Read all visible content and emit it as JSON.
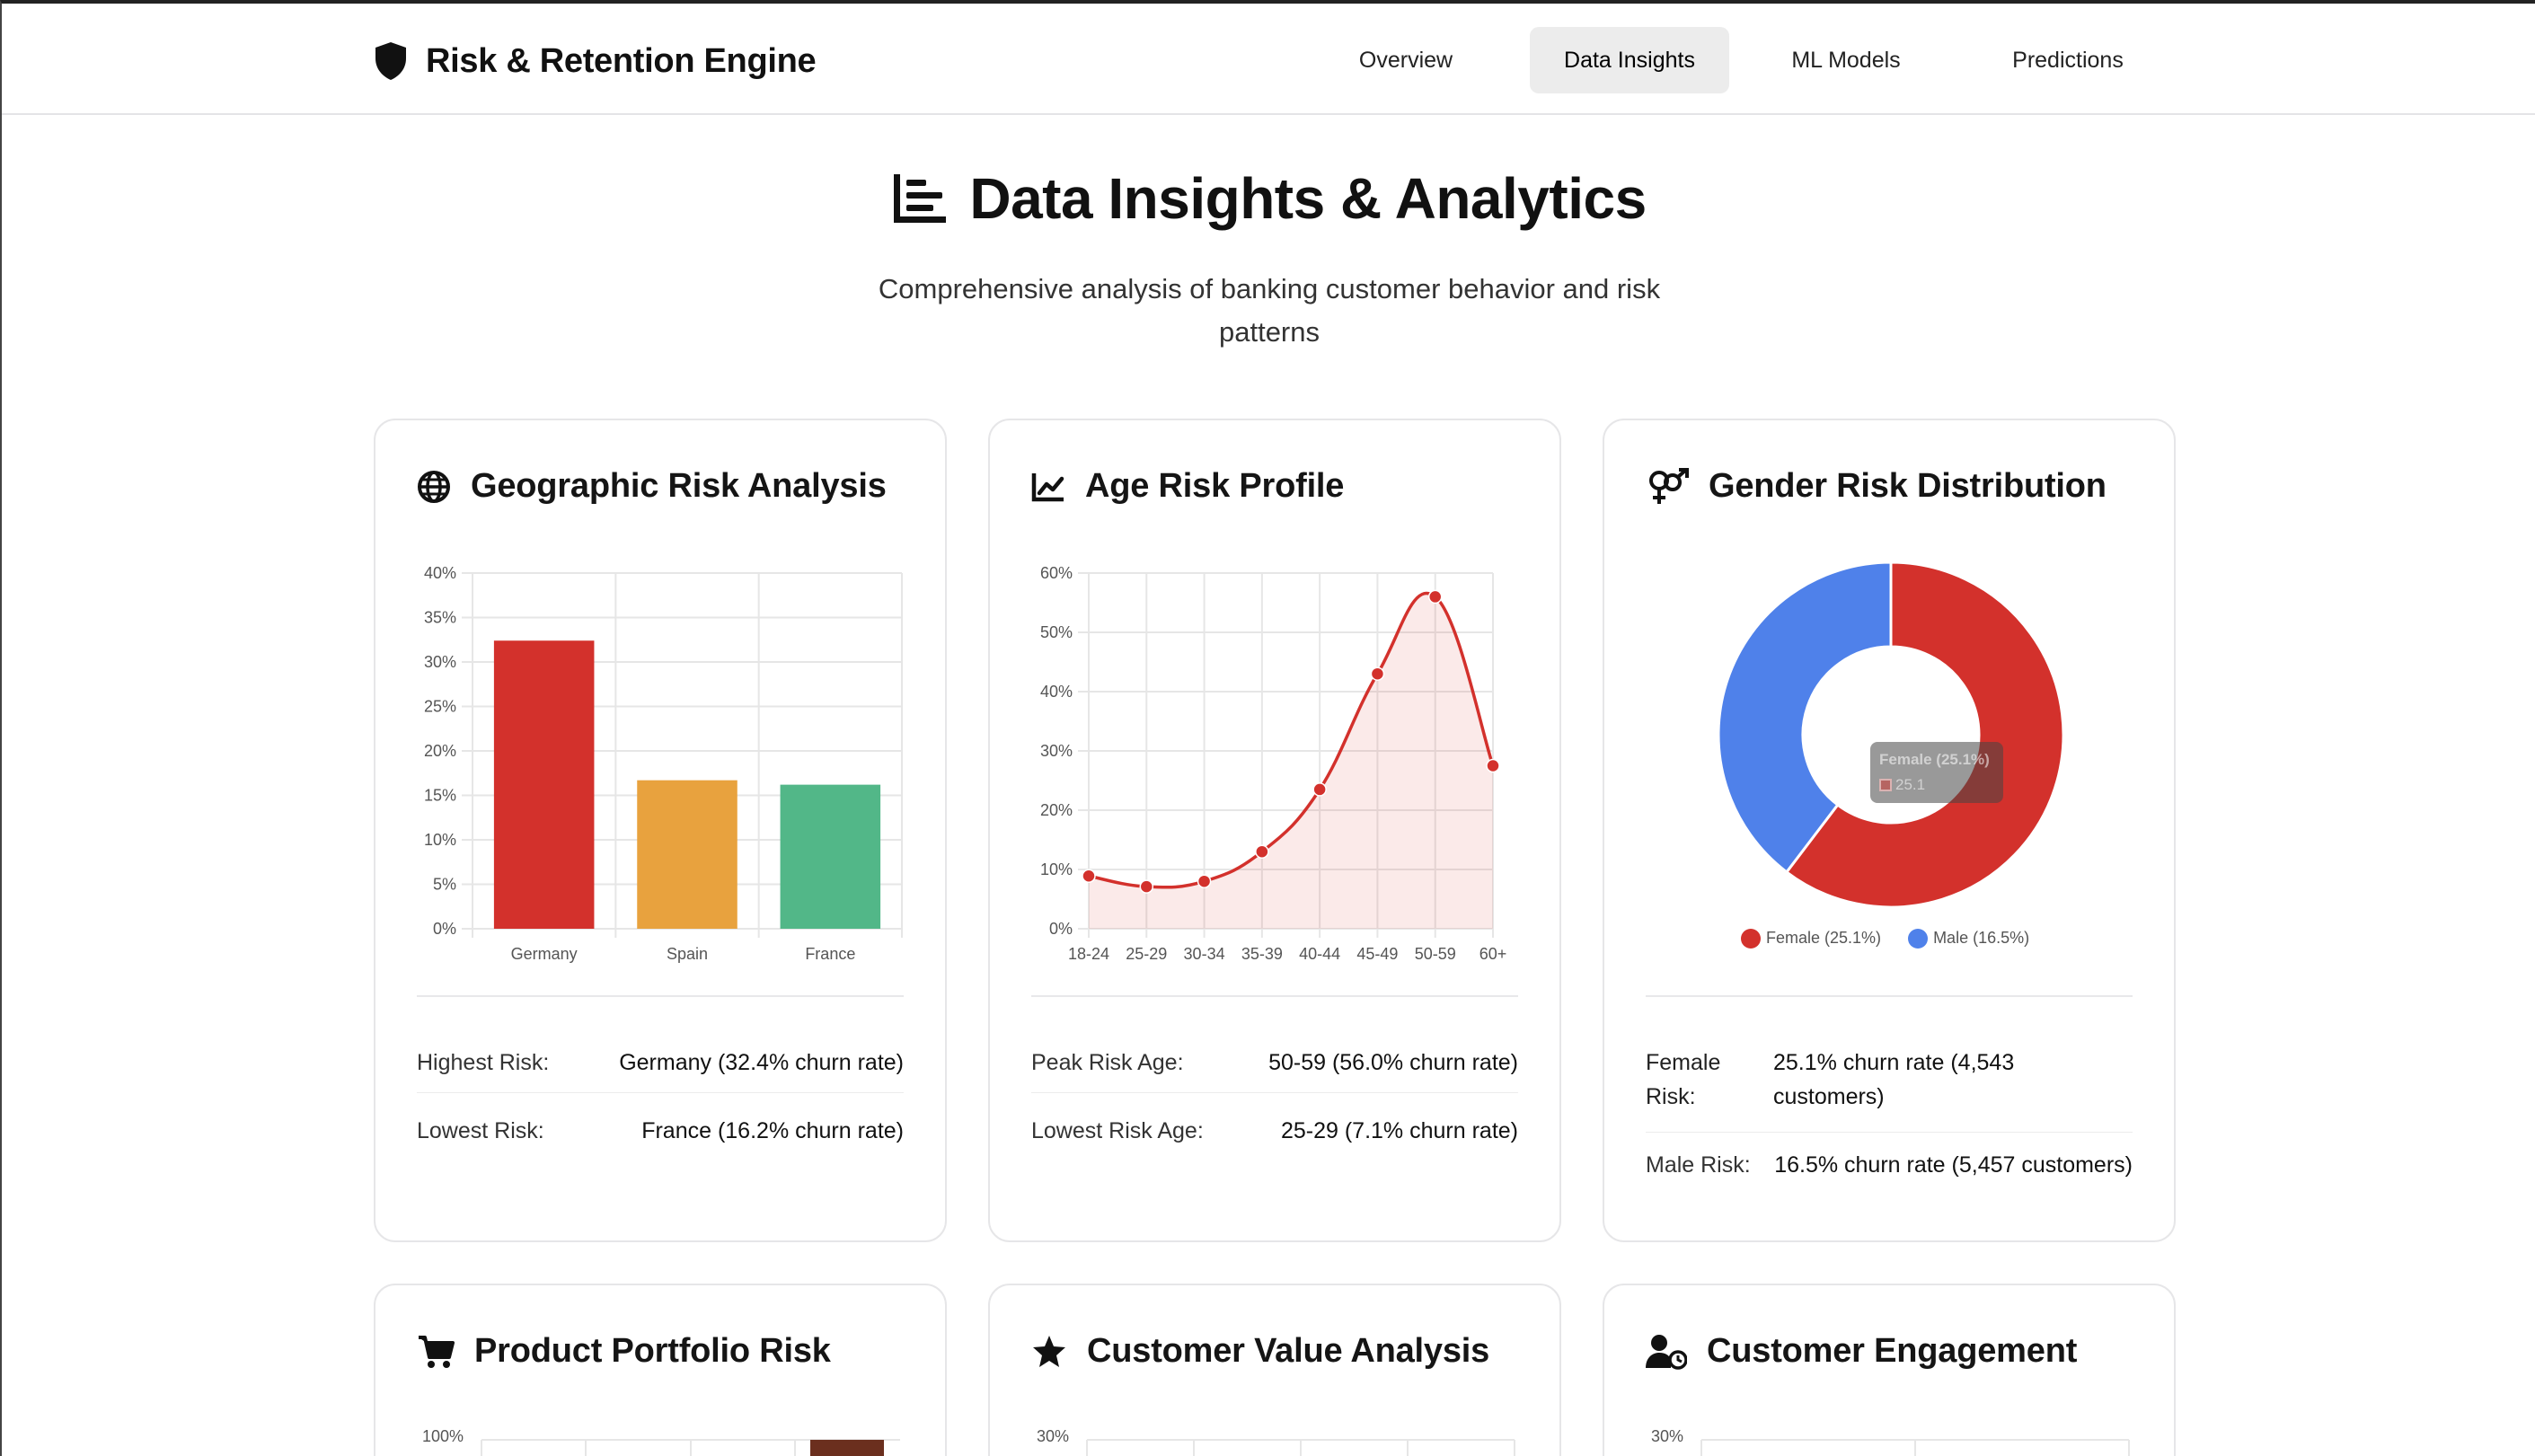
{
  "app": {
    "title": "Risk & Retention Engine",
    "nav": [
      {
        "label": "Overview",
        "active": false
      },
      {
        "label": "Data Insights",
        "active": true
      },
      {
        "label": "ML Models",
        "active": false
      },
      {
        "label": "Predictions",
        "active": false
      }
    ]
  },
  "page": {
    "title": "Data Insights & Analytics",
    "subtitle_line1": "Comprehensive analysis of banking customer behavior and risk",
    "subtitle_line2": "patterns"
  },
  "cards": {
    "geo": {
      "title": "Geographic Risk Analysis",
      "icon": "globe-icon",
      "stats": [
        {
          "label": "Highest Risk:",
          "value": "Germany (32.4% churn rate)"
        },
        {
          "label": "Lowest Risk:",
          "value": "France (16.2% churn rate)"
        }
      ]
    },
    "age": {
      "title": "Age Risk Profile",
      "icon": "line-chart-icon",
      "stats": [
        {
          "label": "Peak Risk Age:",
          "value": "50-59 (56.0% churn rate)"
        },
        {
          "label": "Lowest Risk Age:",
          "value": "25-29 (7.1% churn rate)"
        }
      ]
    },
    "gender": {
      "title": "Gender Risk Distribution",
      "icon": "gender-icon",
      "stats": [
        {
          "label_line1": "Female",
          "label_line2": "Risk:",
          "value_line1": "25.1% churn rate (4,543",
          "value_line2": "customers)"
        },
        {
          "label": "Male Risk:",
          "value": "16.5% churn rate (5,457 customers)"
        }
      ],
      "tooltip_title": "Female (25.1%)",
      "tooltip_value": "25.1"
    },
    "product": {
      "title": "Product Portfolio Risk",
      "icon": "cart-icon",
      "first_tick": "100%"
    },
    "value": {
      "title": "Customer Value Analysis",
      "icon": "star-icon",
      "first_tick": "30%"
    },
    "engagement": {
      "title": "Customer Engagement",
      "icon": "user-clock-icon",
      "first_tick": "30%"
    }
  },
  "colors": {
    "red": "#d3312c",
    "orange": "#e8a23e",
    "green": "#52b788",
    "blue": "#4f81ea",
    "brown": "#6b2f1e"
  },
  "chart_data": [
    {
      "type": "bar",
      "categories": [
        "Germany",
        "Spain",
        "France"
      ],
      "values": [
        32.4,
        16.7,
        16.2
      ],
      "ylim": [
        0,
        40
      ],
      "yticks": [
        "0%",
        "5%",
        "10%",
        "15%",
        "20%",
        "25%",
        "30%",
        "35%",
        "40%"
      ],
      "colors": [
        "#d3312c",
        "#e8a23e",
        "#52b788"
      ],
      "grid": true
    },
    {
      "type": "area",
      "categories": [
        "18-24",
        "25-29",
        "30-34",
        "35-39",
        "40-44",
        "45-49",
        "50-59",
        "60+"
      ],
      "values": [
        8.9,
        7.1,
        8.0,
        13.0,
        23.5,
        43.0,
        56.0,
        27.5
      ],
      "ylim": [
        0,
        60
      ],
      "yticks": [
        "0%",
        "10%",
        "20%",
        "30%",
        "40%",
        "50%",
        "60%"
      ],
      "color": "#d3312c",
      "grid": true
    },
    {
      "type": "pie",
      "labels": [
        "Female (25.1%)",
        "Male (16.5%)"
      ],
      "values": [
        25.1,
        16.5
      ],
      "colors": [
        "#d3312c",
        "#4f81ea"
      ],
      "legend": "bottom"
    }
  ]
}
